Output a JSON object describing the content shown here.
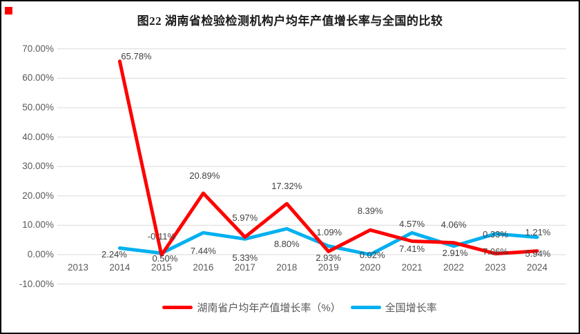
{
  "page": {
    "title": "图22 湖南省检验检测机构户均年产值增长率与全国的比较",
    "corner_marker_color": "#FF0000"
  },
  "chart_data": {
    "type": "line",
    "title": "图22 湖南省检验检测机构户均年产值增长率与全国的比较",
    "categories": [
      "2013",
      "2014",
      "2015",
      "2016",
      "2017",
      "2018",
      "2019",
      "2020",
      "2021",
      "2022",
      "2023",
      "2024"
    ],
    "y_axis": {
      "tick_labels": [
        "70.00%",
        "60.00%",
        "50.00%",
        "40.00%",
        "30.00%",
        "20.00%",
        "10.00%",
        "0.00%",
        "-10.00%"
      ],
      "tick_values": [
        70,
        60,
        50,
        40,
        30,
        20,
        10,
        0,
        -10
      ],
      "min": -10,
      "max": 70,
      "grid": true
    },
    "grid_color": "#d9d9d9",
    "legend_position": "bottom",
    "series": [
      {
        "name": "湖南省户均年产值增长率（%）",
        "color": "#FF0000",
        "values": [
          null,
          65.78,
          -0.11,
          20.89,
          5.97,
          17.32,
          1.09,
          8.39,
          4.57,
          4.06,
          0.33,
          1.21
        ],
        "point_labels": [
          "",
          "65.78%",
          "-0.11%",
          "20.89%",
          "5.97%",
          "17.32%",
          "1.09%",
          "8.39%",
          "4.57%",
          "4.06%",
          "0.33%",
          "1.21%"
        ]
      },
      {
        "name": "全国增长率",
        "color": "#00B0F0",
        "values": [
          null,
          2.24,
          0.5,
          7.44,
          5.33,
          8.8,
          2.93,
          0.02,
          7.41,
          2.91,
          7.06,
          5.94
        ],
        "point_labels": [
          "",
          "2.24%",
          "0.50%",
          "7.44%",
          "5.33%",
          "8.80%",
          "2.93%",
          "0.02%",
          "7.41%",
          "2.91%",
          "7.06%",
          "5.94%"
        ]
      }
    ]
  }
}
